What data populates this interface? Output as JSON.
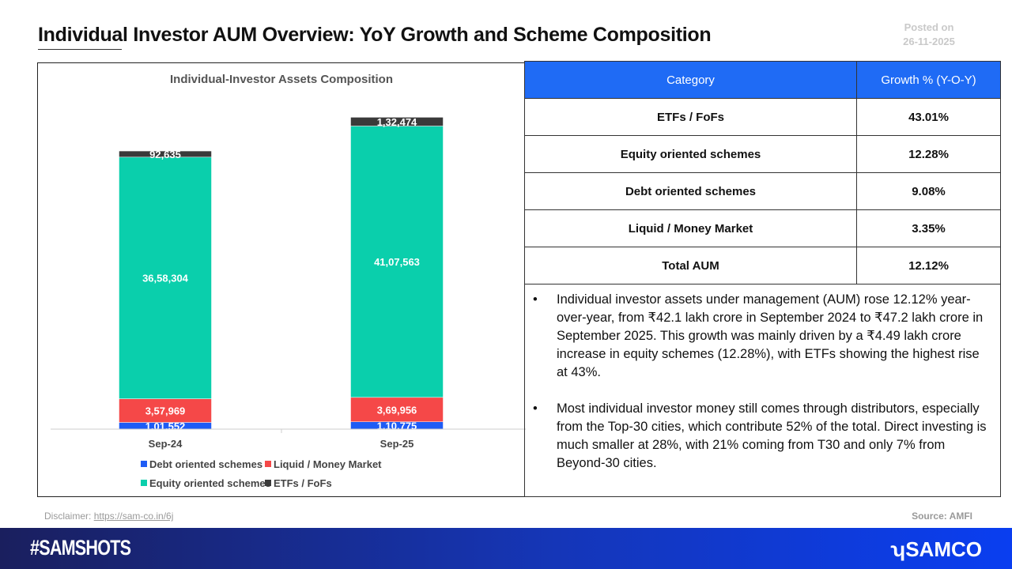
{
  "header": {
    "title": "Individual Investor AUM Overview: YoY Growth and Scheme Composition",
    "posted_label": "Posted on",
    "posted_date": "26-11-2025"
  },
  "chart_data": {
    "type": "bar",
    "stacked": true,
    "title": "Individual-Investor Assets Composition",
    "categories": [
      "Sep-24",
      "Sep-25"
    ],
    "series": [
      {
        "name": "Debt oriented schemes",
        "color": "#1f5cf5",
        "values": [
          101552,
          110775
        ],
        "labels": [
          "1,01,552",
          "1,10,775"
        ]
      },
      {
        "name": "Liquid / Money Market",
        "color": "#f54848",
        "values": [
          357969,
          369956
        ],
        "labels": [
          "3,57,969",
          "3,69,956"
        ]
      },
      {
        "name": "Equity oriented schemes",
        "color": "#0acfac",
        "values": [
          3658304,
          4107563
        ],
        "labels": [
          "36,58,304",
          "41,07,563"
        ]
      },
      {
        "name": "ETFs / FoFs",
        "color": "#3a3a3a",
        "values": [
          92635,
          132474
        ],
        "labels": [
          "92,635",
          "1,32,474"
        ]
      }
    ],
    "ylim": [
      0,
      5300000
    ],
    "legend": "bottom",
    "grid": false
  },
  "table": {
    "headers": [
      "Category",
      "Growth % (Y-O-Y)"
    ],
    "rows": [
      [
        "ETFs / FoFs",
        "43.01%"
      ],
      [
        "Equity oriented schemes",
        "12.28%"
      ],
      [
        "Debt oriented schemes",
        "9.08%"
      ],
      [
        "Liquid / Money Market",
        "3.35%"
      ],
      [
        "Total AUM",
        "12.12%"
      ]
    ]
  },
  "notes": [
    "Individual investor assets under management (AUM) rose 12.12% year-over-year, from ₹42.1 lakh crore in September 2024 to ₹47.2 lakh crore in September 2025. This growth was mainly driven by a ₹4.49 lakh crore increase in equity schemes (12.28%), with ETFs showing the highest rise at 43%.",
    "Most individual investor money still comes through distributors, especially from the Top-30 cities, which contribute 52% of the total. Direct investing is much smaller at 28%, with 21% coming from T30 and only 7% from Beyond-30 cities."
  ],
  "bullet": "•",
  "footer": {
    "disclaimer_label": "Disclaimer:",
    "disclaimer_link": "https://sam-co.in/6j",
    "source": "Source: AMFI",
    "hashtag": "#SAMSHOTS",
    "brand": "SAMCO"
  }
}
